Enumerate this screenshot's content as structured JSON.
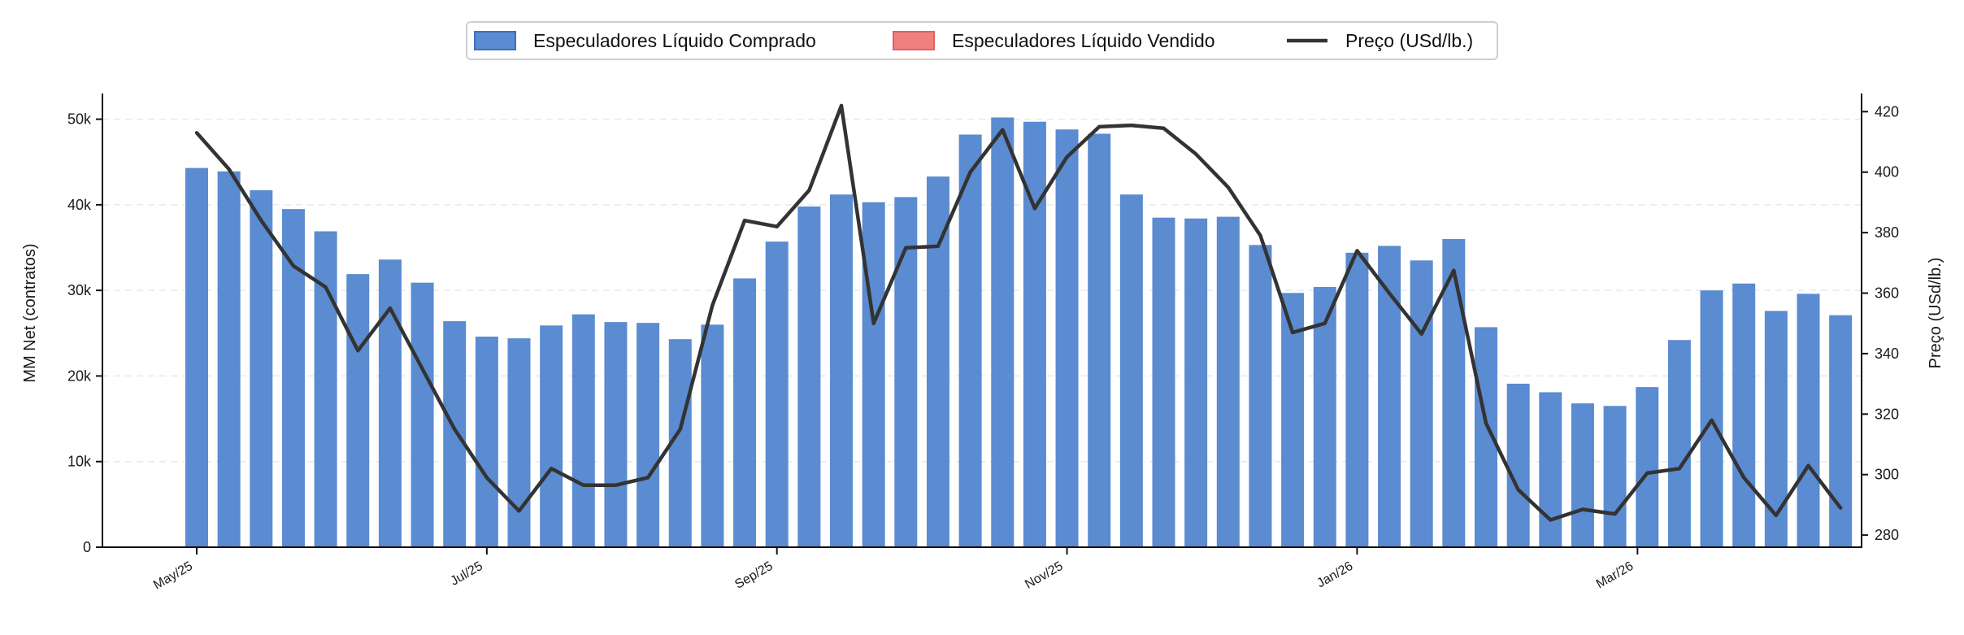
{
  "chart_data": {
    "type": "bar",
    "legend": {
      "placement": "top-center",
      "entries": [
        {
          "label": "Especuladores Líquido Comprado",
          "kind": "bar",
          "color": "#5b8bd0"
        },
        {
          "label": "Especuladores Líquido Vendido",
          "kind": "bar",
          "color": "#f08080"
        },
        {
          "label": "Preço (USd/lb.)",
          "kind": "line",
          "color": "#333333"
        }
      ]
    },
    "ylabel": "MM Net (contratos)",
    "y2label": "Preço (USd/lb.)",
    "ylim": [
      0,
      53000
    ],
    "y2lim": [
      276,
      426
    ],
    "yticks": [
      {
        "value": 0,
        "label": "0"
      },
      {
        "value": 10000,
        "label": "10k"
      },
      {
        "value": 20000,
        "label": "20k"
      },
      {
        "value": 30000,
        "label": "30k"
      },
      {
        "value": 40000,
        "label": "40k"
      },
      {
        "value": 50000,
        "label": "50k"
      }
    ],
    "y2ticks": [
      {
        "value": 280,
        "label": "280"
      },
      {
        "value": 300,
        "label": "300"
      },
      {
        "value": 320,
        "label": "320"
      },
      {
        "value": 340,
        "label": "340"
      },
      {
        "value": 360,
        "label": "360"
      },
      {
        "value": 380,
        "label": "380"
      },
      {
        "value": 400,
        "label": "400"
      },
      {
        "value": 420,
        "label": "420"
      }
    ],
    "xticks": [
      {
        "index": 0,
        "label": "May/25"
      },
      {
        "index": 9,
        "label": "Jul/25"
      },
      {
        "index": 18,
        "label": "Sep/25"
      },
      {
        "index": 27,
        "label": "Nov/25"
      },
      {
        "index": 36,
        "label": "Jan/26"
      },
      {
        "index": 44.7,
        "label": "Mar/26"
      }
    ],
    "grid": "horizontal-dashed",
    "series": [
      {
        "name": "Especuladores Líquido Comprado",
        "type": "bar",
        "color": "#5b8bd0",
        "values": [
          44300,
          43900,
          41700,
          39500,
          36900,
          31900,
          33600,
          30900,
          26400,
          24600,
          24400,
          25900,
          27200,
          26300,
          26200,
          24300,
          26000,
          31400,
          35700,
          39800,
          41200,
          40300,
          40900,
          43300,
          48200,
          50200,
          49700,
          48800,
          48300,
          41200,
          38500,
          38400,
          38600,
          35300,
          29700,
          30400,
          34400,
          35200,
          33500,
          36000,
          25700,
          19100,
          18100,
          16800,
          16500,
          18700,
          24200,
          30000,
          30800,
          27600,
          29600,
          27100
        ]
      },
      {
        "name": "Preço (USd/lb.)",
        "type": "line",
        "axis": "right",
        "color": "#333333",
        "values": [
          413,
          401,
          384,
          369,
          362,
          341,
          355,
          335,
          315,
          299,
          288,
          302,
          296.5,
          296.5,
          299,
          315,
          356,
          384,
          382,
          394,
          422,
          350,
          375,
          375.5,
          400,
          414,
          388,
          405,
          415,
          415.5,
          414.5,
          406,
          395,
          379,
          347,
          350,
          374,
          360,
          346.5,
          367.5,
          317,
          295,
          285,
          288.5,
          287,
          300.5,
          302,
          318,
          299,
          286.5,
          303,
          289
        ]
      }
    ]
  }
}
